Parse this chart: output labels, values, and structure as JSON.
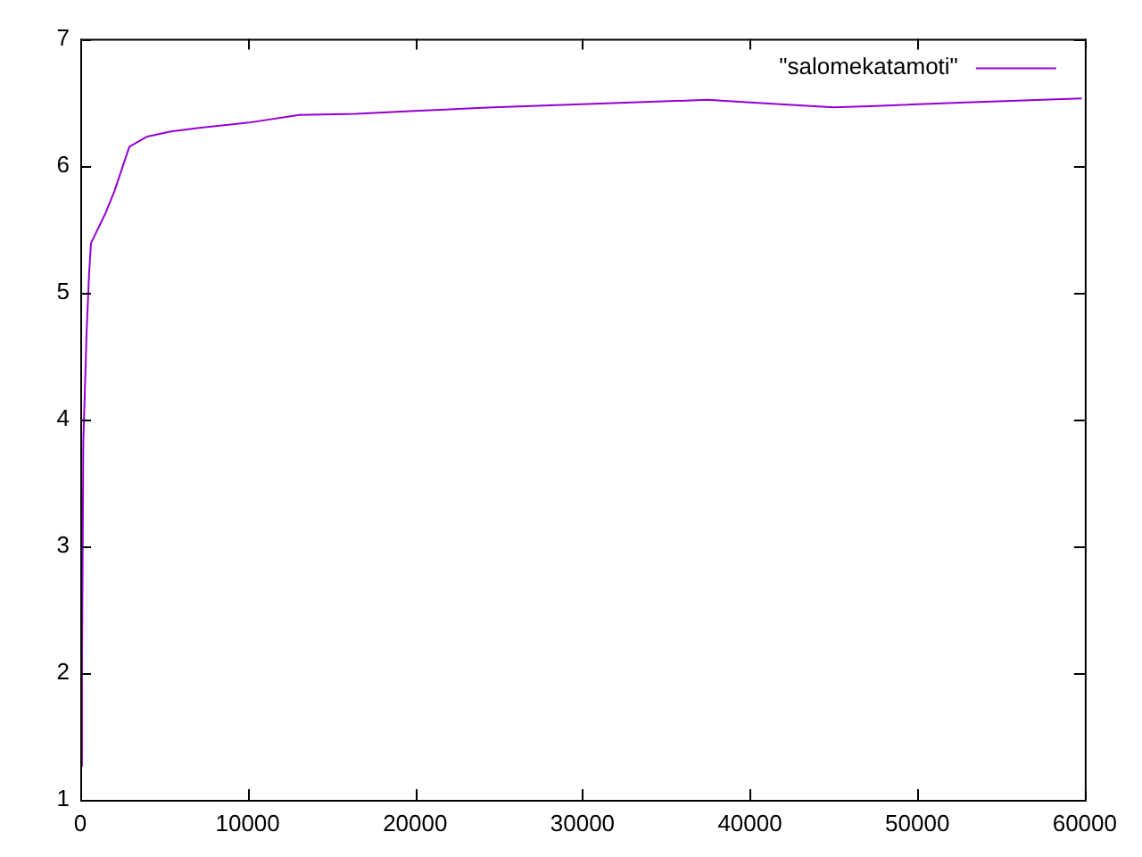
{
  "chart_data": {
    "type": "line",
    "legend": "top right",
    "marker": "none",
    "line_style": "solid",
    "grid": false,
    "xlim": [
      0,
      60000
    ],
    "xticks": [
      0,
      10000,
      20000,
      30000,
      40000,
      50000,
      60000
    ],
    "ylim": [
      1,
      7
    ],
    "yticks": [
      1,
      2,
      3,
      4,
      5,
      6,
      7
    ],
    "series": [
      {
        "name": "\"salomekatamoti\"",
        "color": "#9400d3",
        "x": [
          100,
          100,
          180,
          280,
          380,
          530,
          640,
          1520,
          2040,
          2930,
          4000,
          5420,
          7210,
          10060,
          13080,
          16480,
          19690,
          24660,
          31060,
          37460,
          40010,
          44990,
          47120,
          52880,
          59820
        ],
        "values": [
          1.26,
          1.92,
          3.82,
          4.26,
          4.7,
          5.16,
          5.39,
          5.63,
          5.8,
          6.15,
          6.23,
          6.27,
          6.3,
          6.34,
          6.4,
          6.41,
          6.43,
          6.46,
          6.49,
          6.52,
          6.5,
          6.46,
          6.47,
          6.5,
          6.53
        ]
      }
    ]
  }
}
